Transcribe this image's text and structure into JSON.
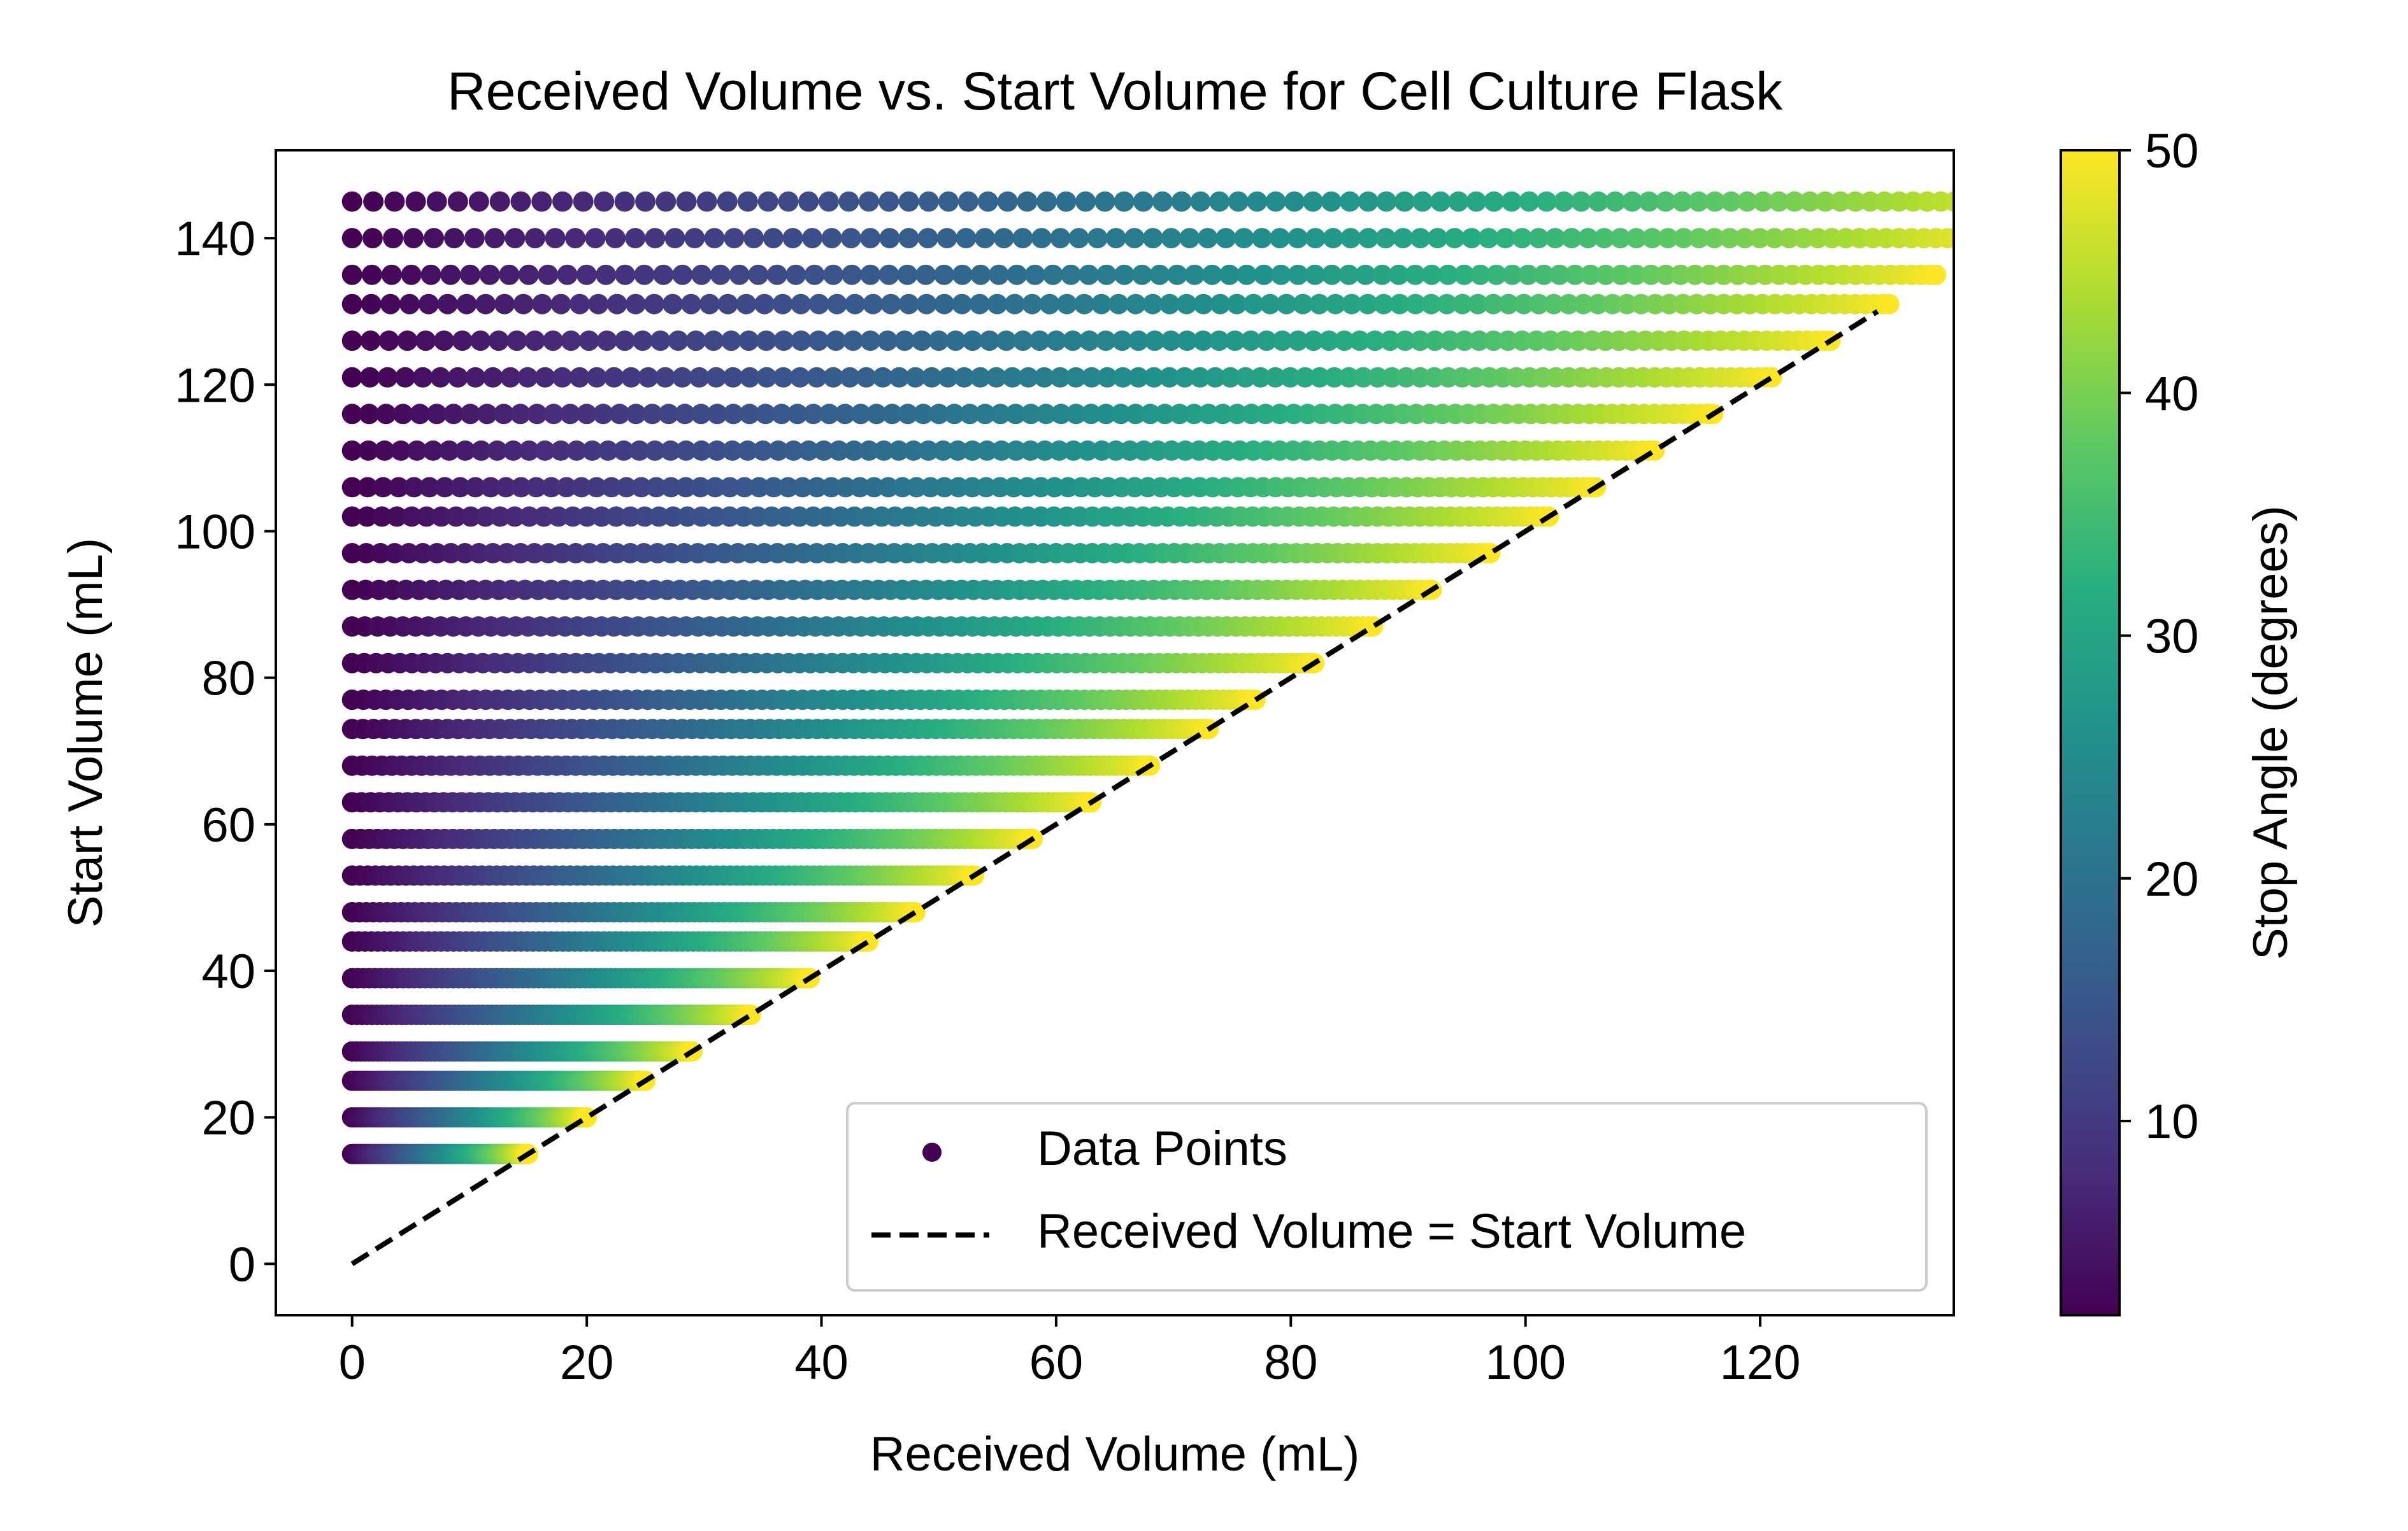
{
  "chart_data": {
    "type": "scatter",
    "title": "Received Volume vs. Start Volume for Cell Culture Flask",
    "xlabel": "Received Volume (mL)",
    "ylabel": "Start Volume (mL)",
    "xlim": [
      -6.5,
      136.5
    ],
    "ylim": [
      -7,
      152
    ],
    "xticks": [
      0,
      20,
      40,
      60,
      80,
      100,
      120
    ],
    "yticks": [
      0,
      20,
      40,
      60,
      80,
      100,
      120,
      140
    ],
    "grid": false,
    "legend": {
      "placement": "lower-right",
      "entries": [
        "Data Points",
        "Received Volume = Start Volume"
      ]
    },
    "colorbar": {
      "label": "Stop Angle (degrees)",
      "range": [
        2,
        50
      ],
      "ticks": [
        10,
        20,
        30,
        40,
        50
      ],
      "colormap": "viridis"
    },
    "series": [
      {
        "name": "Data Points",
        "kind": "scatter",
        "start_volume_levels": [
          15,
          20,
          25,
          29,
          34,
          39,
          44,
          48,
          53,
          58,
          63,
          68,
          73,
          77,
          82,
          87,
          92,
          97,
          102,
          106,
          111,
          116,
          121,
          126,
          131,
          135,
          140,
          145
        ],
        "stop_angle_range": [
          2,
          50
        ],
        "description": "For each start volume level, received volume rises from 0 toward the start volume as stop angle increases from 2 to 50 degrees"
      },
      {
        "name": "Received Volume = Start Volume",
        "kind": "line",
        "style": "dashed",
        "x": [
          0,
          130
        ],
        "y": [
          0,
          130
        ],
        "color": "#000000"
      }
    ]
  }
}
